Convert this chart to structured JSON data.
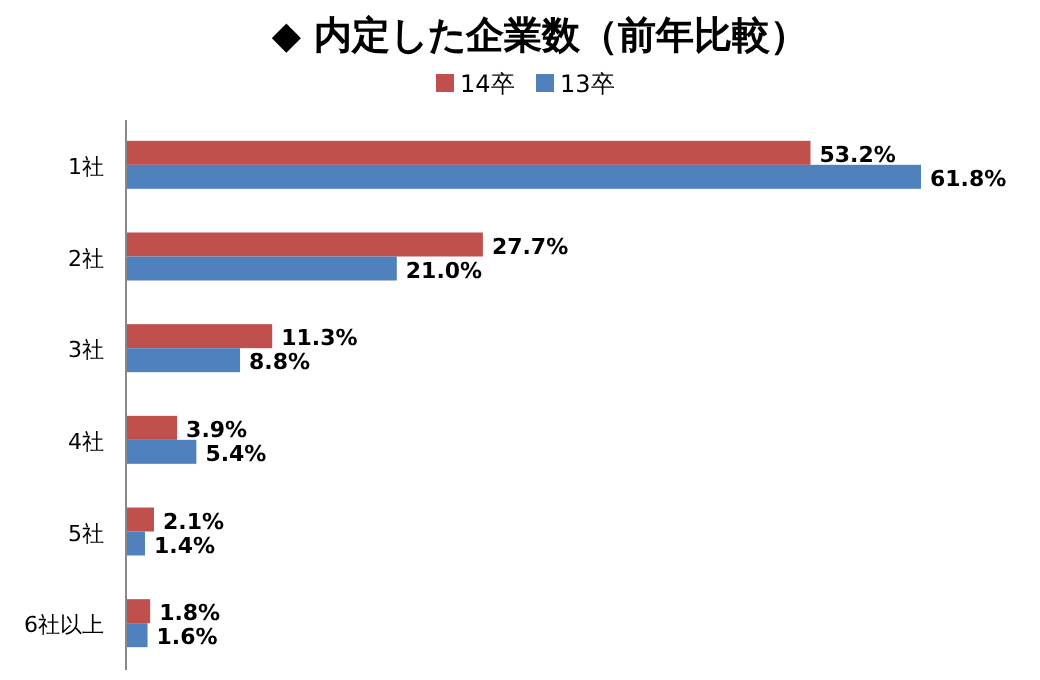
{
  "chart_data": {
    "type": "bar",
    "orientation": "horizontal",
    "title": "◆ 内定した企業数（前年比較）",
    "categories": [
      "1社",
      "2社",
      "3社",
      "4社",
      "5社",
      "6社以上"
    ],
    "series": [
      {
        "name": "14卒",
        "color": "#c0504d",
        "values": [
          53.2,
          27.7,
          11.3,
          3.9,
          2.1,
          1.8
        ],
        "value_labels": [
          "53.2%",
          "27.7%",
          "11.3%",
          "3.9%",
          "2.1%",
          "1.8%"
        ]
      },
      {
        "name": "13卒",
        "color": "#4f81bd",
        "values": [
          61.8,
          21.0,
          8.8,
          5.4,
          1.4,
          1.6
        ],
        "value_labels": [
          "61.8%",
          "21.0%",
          "8.8%",
          "5.4%",
          "1.4%",
          "1.6%"
        ]
      }
    ],
    "legend": "top"
  }
}
